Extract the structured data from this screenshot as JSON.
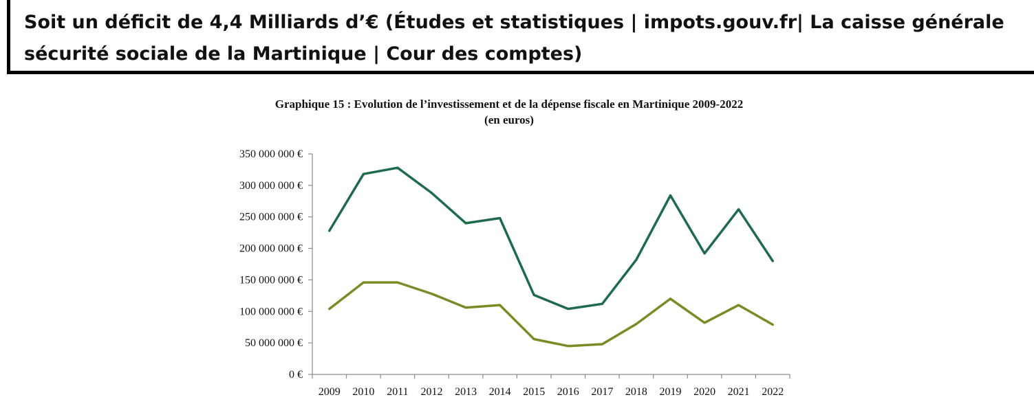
{
  "header": {
    "text": "Soit un déficit de 4,4 Milliards d’€ (Études et statistiques | impots.gouv.fr| La caisse générale sécurité sociale de la Martinique | Cour des comptes)"
  },
  "chart_data": {
    "type": "line",
    "title": "Graphique 15 : Evolution de l’investissement et de la dépense fiscale en Martinique 2009-2022",
    "subtitle": "(en euros)",
    "xlabel": "",
    "ylabel": "",
    "categories": [
      "2009",
      "2010",
      "2011",
      "2012",
      "2013",
      "2014",
      "2015",
      "2016",
      "2017",
      "2018",
      "2019",
      "2020",
      "2021",
      "2022"
    ],
    "y_ticks": [
      "0 €",
      "50 000 000 €",
      "100 000 000 €",
      "150 000 000 €",
      "200 000 000 €",
      "250 000 000 €",
      "300 000 000 €",
      "350 000 000 €"
    ],
    "ylim": [
      0,
      350000000
    ],
    "grid": false,
    "series": [
      {
        "color": "#1e6b4c",
        "values": [
          228000000,
          318000000,
          328000000,
          288000000,
          240000000,
          248000000,
          126000000,
          104000000,
          112000000,
          182000000,
          284000000,
          192000000,
          262000000,
          180000000
        ]
      },
      {
        "color": "#7a8a24",
        "values": [
          104000000,
          146000000,
          146000000,
          128000000,
          106000000,
          110000000,
          56000000,
          45000000,
          48000000,
          80000000,
          120000000,
          82000000,
          110000000,
          79000000
        ]
      }
    ]
  }
}
